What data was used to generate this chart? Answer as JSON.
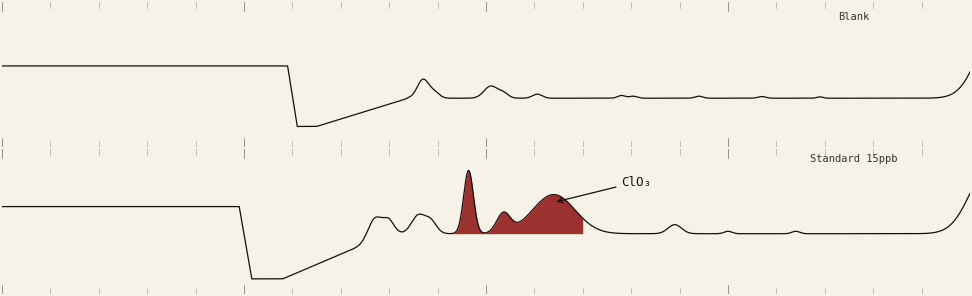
{
  "fig_width": 9.72,
  "fig_height": 2.96,
  "dpi": 100,
  "bg_color": "#f7f2e8",
  "line_color": "#111111",
  "line_color_red": "#8B1010",
  "label_blank": "Blank",
  "label_standard": "Standard 15ppb",
  "annotation": "ClO₃",
  "font_family": "monospace"
}
